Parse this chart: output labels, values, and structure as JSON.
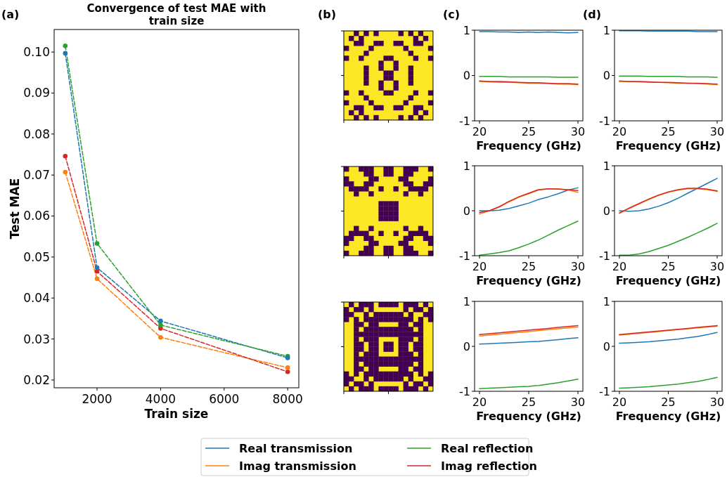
{
  "chart_data": [
    {
      "type": "line",
      "title": "Convergence of test MAE with train size",
      "xlabel": "Train size",
      "ylabel": "Test MAE",
      "x": [
        1000,
        2000,
        4000,
        8000
      ],
      "xlim": [
        650,
        8350
      ],
      "ylim": [
        0.0181,
        0.1055
      ],
      "xticks": [
        2000,
        4000,
        6000,
        8000
      ],
      "yticks": [
        {
          "value": 0.02,
          "label": "0.02"
        },
        {
          "value": 0.03,
          "label": "0.03"
        },
        {
          "value": 0.04,
          "label": "0.04"
        },
        {
          "value": 0.05,
          "label": "0.05"
        },
        {
          "value": 0.06,
          "label": "0.06"
        },
        {
          "value": 0.07,
          "label": "0.07"
        },
        {
          "value": 0.08,
          "label": "0.08"
        },
        {
          "value": 0.09,
          "label": "0.09"
        },
        {
          "value": 0.1,
          "label": "0.10"
        }
      ],
      "marker": "circle",
      "line_style": "dashed",
      "legend": "bottom",
      "annotations": [
        "(a)",
        "(b)"
      ],
      "series": [
        {
          "name": "Real transmission",
          "color": "#1f77b4",
          "values": [
            0.0997,
            0.0474,
            0.0344,
            0.0254
          ]
        },
        {
          "name": "Imag transmission",
          "color": "#ff7f0e",
          "values": [
            0.0707,
            0.0447,
            0.0304,
            0.023
          ]
        },
        {
          "name": "Real reflection",
          "color": "#2ca02c",
          "values": [
            0.1015,
            0.0533,
            0.0334,
            0.0258
          ]
        },
        {
          "name": "Imag reflection",
          "color": "#d62728",
          "values": [
            0.0746,
            0.0465,
            0.0326,
            0.022
          ]
        }
      ]
    },
    {
      "type": "line",
      "xlabel": "Frequency (GHz)",
      "x": [
        20,
        21,
        22,
        23,
        24,
        25,
        26,
        27,
        28,
        29,
        30
      ],
      "xlim": [
        19.5,
        30.5
      ],
      "ylim": [
        -1,
        1
      ],
      "xticks": [
        20,
        25,
        30
      ],
      "yticks": [
        -1,
        0,
        1
      ],
      "annotations": [
        "(c)"
      ],
      "series": [
        {
          "color": "#1f77b4",
          "values": [
            0.97,
            0.97,
            0.96,
            0.96,
            0.95,
            0.96,
            0.95,
            0.96,
            0.95,
            0.94,
            0.95
          ]
        },
        {
          "color": "#ff7f0e",
          "values": [
            -0.13,
            -0.14,
            -0.15,
            -0.15,
            -0.16,
            -0.17,
            -0.17,
            -0.18,
            -0.19,
            -0.19,
            -0.2
          ]
        },
        {
          "color": "#2ca02c",
          "values": [
            -0.02,
            -0.02,
            -0.02,
            -0.03,
            -0.03,
            -0.03,
            -0.03,
            -0.03,
            -0.04,
            -0.04,
            -0.04
          ]
        },
        {
          "color": "#d62728",
          "values": [
            -0.12,
            -0.13,
            -0.13,
            -0.14,
            -0.15,
            -0.16,
            -0.16,
            -0.17,
            -0.18,
            -0.18,
            -0.19
          ]
        }
      ]
    },
    {
      "type": "line",
      "xlabel": "Frequency (GHz)",
      "x": [
        20,
        21,
        22,
        23,
        24,
        25,
        26,
        27,
        28,
        29,
        30
      ],
      "xlim": [
        19.5,
        30.5
      ],
      "ylim": [
        -1,
        1
      ],
      "xticks": [
        20,
        25,
        30
      ],
      "yticks": [
        -1,
        0,
        1
      ],
      "annotations": [
        "(d)"
      ],
      "series": [
        {
          "color": "#1f77b4",
          "values": [
            0.99,
            0.99,
            0.99,
            0.98,
            0.98,
            0.98,
            0.98,
            0.98,
            0.97,
            0.97,
            0.97
          ]
        },
        {
          "color": "#ff7f0e",
          "values": [
            -0.13,
            -0.13,
            -0.14,
            -0.15,
            -0.15,
            -0.16,
            -0.17,
            -0.17,
            -0.18,
            -0.19,
            -0.2
          ]
        },
        {
          "color": "#2ca02c",
          "values": [
            -0.01,
            -0.01,
            -0.01,
            -0.02,
            -0.02,
            -0.02,
            -0.02,
            -0.03,
            -0.03,
            -0.03,
            -0.04
          ]
        },
        {
          "color": "#d62728",
          "values": [
            -0.12,
            -0.13,
            -0.13,
            -0.14,
            -0.15,
            -0.15,
            -0.16,
            -0.17,
            -0.17,
            -0.18,
            -0.19
          ]
        }
      ]
    },
    {
      "type": "line",
      "xlabel": "Frequency (GHz)",
      "x": [
        20,
        21,
        22,
        23,
        24,
        25,
        26,
        27,
        28,
        29,
        30
      ],
      "xlim": [
        19.5,
        30.5
      ],
      "ylim": [
        -1,
        1
      ],
      "xticks": [
        20,
        25,
        30
      ],
      "yticks": [
        -1,
        0,
        1
      ],
      "series": [
        {
          "color": "#1f77b4",
          "values": [
            0.0,
            0.0,
            0.01,
            0.05,
            0.11,
            0.17,
            0.25,
            0.31,
            0.38,
            0.46,
            0.51
          ]
        },
        {
          "color": "#ff7f0e",
          "values": [
            -0.07,
            0.0,
            0.08,
            0.2,
            0.3,
            0.38,
            0.46,
            0.49,
            0.49,
            0.46,
            0.41
          ]
        },
        {
          "color": "#2ca02c",
          "values": [
            -0.99,
            -0.96,
            -0.93,
            -0.89,
            -0.82,
            -0.74,
            -0.65,
            -0.54,
            -0.43,
            -0.33,
            -0.23
          ]
        },
        {
          "color": "#d62728",
          "values": [
            -0.04,
            0.0,
            0.09,
            0.21,
            0.31,
            0.39,
            0.47,
            0.49,
            0.48,
            0.47,
            0.45
          ]
        }
      ]
    },
    {
      "type": "line",
      "xlabel": "Frequency (GHz)",
      "x": [
        20,
        21,
        22,
        23,
        24,
        25,
        26,
        27,
        28,
        29,
        30
      ],
      "xlim": [
        19.5,
        30.5
      ],
      "ylim": [
        -1,
        1
      ],
      "xticks": [
        20,
        25,
        30
      ],
      "yticks": [
        -1,
        0,
        1
      ],
      "series": [
        {
          "color": "#1f77b4",
          "values": [
            0.0,
            -0.01,
            0.0,
            0.04,
            0.1,
            0.18,
            0.28,
            0.39,
            0.5,
            0.61,
            0.72
          ]
        },
        {
          "color": "#ff7f0e",
          "values": [
            -0.06,
            0.05,
            0.15,
            0.25,
            0.34,
            0.41,
            0.46,
            0.49,
            0.49,
            0.47,
            0.43
          ]
        },
        {
          "color": "#2ca02c",
          "values": [
            -0.99,
            -0.99,
            -0.96,
            -0.91,
            -0.84,
            -0.77,
            -0.68,
            -0.59,
            -0.49,
            -0.39,
            -0.28
          ]
        },
        {
          "color": "#d62728",
          "values": [
            -0.05,
            0.06,
            0.16,
            0.26,
            0.35,
            0.42,
            0.47,
            0.5,
            0.5,
            0.48,
            0.44
          ]
        }
      ]
    },
    {
      "type": "line",
      "xlabel": "Frequency (GHz)",
      "x": [
        20,
        21,
        22,
        23,
        24,
        25,
        26,
        27,
        28,
        29,
        30
      ],
      "xlim": [
        19.5,
        30.5
      ],
      "ylim": [
        -1,
        1
      ],
      "xticks": [
        20,
        25,
        30
      ],
      "yticks": [
        -1,
        0,
        1
      ],
      "series": [
        {
          "color": "#1f77b4",
          "values": [
            0.05,
            0.06,
            0.07,
            0.08,
            0.09,
            0.1,
            0.11,
            0.13,
            0.15,
            0.17,
            0.19
          ]
        },
        {
          "color": "#ff7f0e",
          "values": [
            0.23,
            0.25,
            0.27,
            0.29,
            0.31,
            0.33,
            0.35,
            0.37,
            0.39,
            0.41,
            0.43
          ]
        },
        {
          "color": "#2ca02c",
          "values": [
            -0.94,
            -0.93,
            -0.92,
            -0.91,
            -0.9,
            -0.89,
            -0.87,
            -0.84,
            -0.81,
            -0.77,
            -0.73
          ]
        },
        {
          "color": "#d62728",
          "values": [
            0.26,
            0.28,
            0.3,
            0.32,
            0.34,
            0.36,
            0.38,
            0.4,
            0.42,
            0.44,
            0.46
          ]
        }
      ]
    },
    {
      "type": "line",
      "xlabel": "Frequency (GHz)",
      "x": [
        20,
        21,
        22,
        23,
        24,
        25,
        26,
        27,
        28,
        29,
        30
      ],
      "xlim": [
        19.5,
        30.5
      ],
      "ylim": [
        -1,
        1
      ],
      "xticks": [
        20,
        25,
        30
      ],
      "yticks": [
        -1,
        0,
        1
      ],
      "series": [
        {
          "color": "#1f77b4",
          "values": [
            0.07,
            0.08,
            0.09,
            0.1,
            0.12,
            0.14,
            0.16,
            0.19,
            0.22,
            0.26,
            0.31
          ]
        },
        {
          "color": "#ff7f0e",
          "values": [
            0.25,
            0.27,
            0.29,
            0.31,
            0.33,
            0.35,
            0.37,
            0.39,
            0.41,
            0.43,
            0.45
          ]
        },
        {
          "color": "#2ca02c",
          "values": [
            -0.93,
            -0.92,
            -0.91,
            -0.9,
            -0.88,
            -0.86,
            -0.84,
            -0.81,
            -0.78,
            -0.74,
            -0.69
          ]
        },
        {
          "color": "#d62728",
          "values": [
            0.26,
            0.28,
            0.3,
            0.32,
            0.34,
            0.36,
            0.38,
            0.4,
            0.42,
            0.44,
            0.46
          ]
        }
      ]
    }
  ]
}
